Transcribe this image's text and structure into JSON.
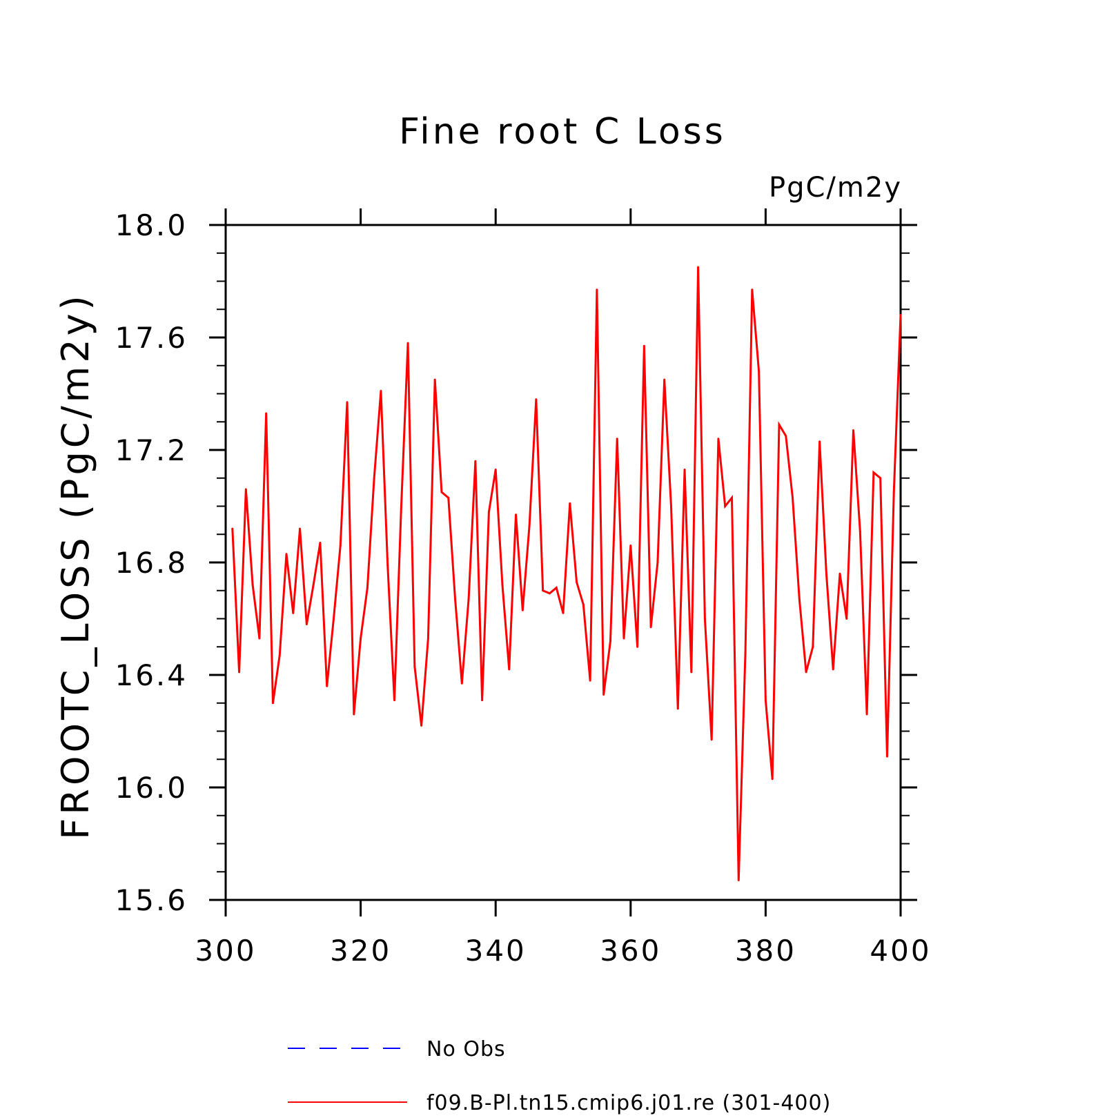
{
  "chart_data": {
    "type": "line",
    "title": "Fine root C Loss",
    "units_label": "PgC/m2y",
    "ylabel": "FROOTC_LOSS  (PgC/m2y)",
    "xlabel": "",
    "xlim": [
      300,
      400
    ],
    "ylim": [
      15.6,
      18.0
    ],
    "x_major_ticks": [
      300,
      320,
      340,
      360,
      380,
      400
    ],
    "x_tick_labels": [
      "300",
      "320",
      "340",
      "360",
      "380",
      "400"
    ],
    "y_major_ticks": [
      15.6,
      16.0,
      16.4,
      16.8,
      17.2,
      17.6,
      18.0
    ],
    "y_tick_labels": [
      "15.6",
      "16.0",
      "16.4",
      "16.8",
      "17.2",
      "17.6",
      "18.0"
    ],
    "y_minor_step": 0.1,
    "grid": false,
    "legend_position": "bottom",
    "legend": [
      {
        "label": "No Obs",
        "color": "#0000ff",
        "dash": true
      },
      {
        "label": "f09.B-Pl.tn15.cmip6.j01.re (301-400)",
        "color": "#ff0000",
        "dash": false
      }
    ],
    "series": [
      {
        "color": "#ff0000",
        "x_start": 301,
        "x_step": 1,
        "values": [
          16.92,
          16.41,
          17.06,
          16.72,
          16.53,
          17.33,
          16.3,
          16.47,
          16.83,
          16.62,
          16.92,
          16.58,
          16.72,
          16.87,
          16.36,
          16.6,
          16.86,
          17.37,
          16.26,
          16.53,
          16.71,
          17.1,
          17.41,
          16.79,
          16.31,
          16.99,
          17.58,
          16.43,
          16.22,
          16.53,
          17.45,
          17.05,
          17.03,
          16.67,
          16.37,
          16.67,
          17.16,
          16.31,
          16.98,
          17.13,
          16.72,
          16.42,
          16.97,
          16.63,
          16.93,
          17.38,
          16.7,
          16.69,
          16.71,
          16.62,
          17.01,
          16.73,
          16.65,
          16.38,
          17.77,
          16.33,
          16.52,
          17.24,
          16.53,
          16.86,
          16.5,
          17.57,
          16.57,
          16.8,
          17.45,
          17.0,
          16.28,
          17.13,
          16.41,
          17.85,
          16.6,
          16.17,
          17.24,
          17.0,
          17.03,
          15.67,
          16.48,
          17.77,
          17.48,
          16.31,
          16.03,
          17.29,
          17.25,
          17.03,
          16.67,
          16.41,
          16.5,
          17.23,
          16.76,
          16.42,
          16.76,
          16.6,
          17.27,
          16.91,
          16.26,
          17.12,
          17.1,
          16.11,
          17.05,
          17.68
        ]
      }
    ]
  }
}
